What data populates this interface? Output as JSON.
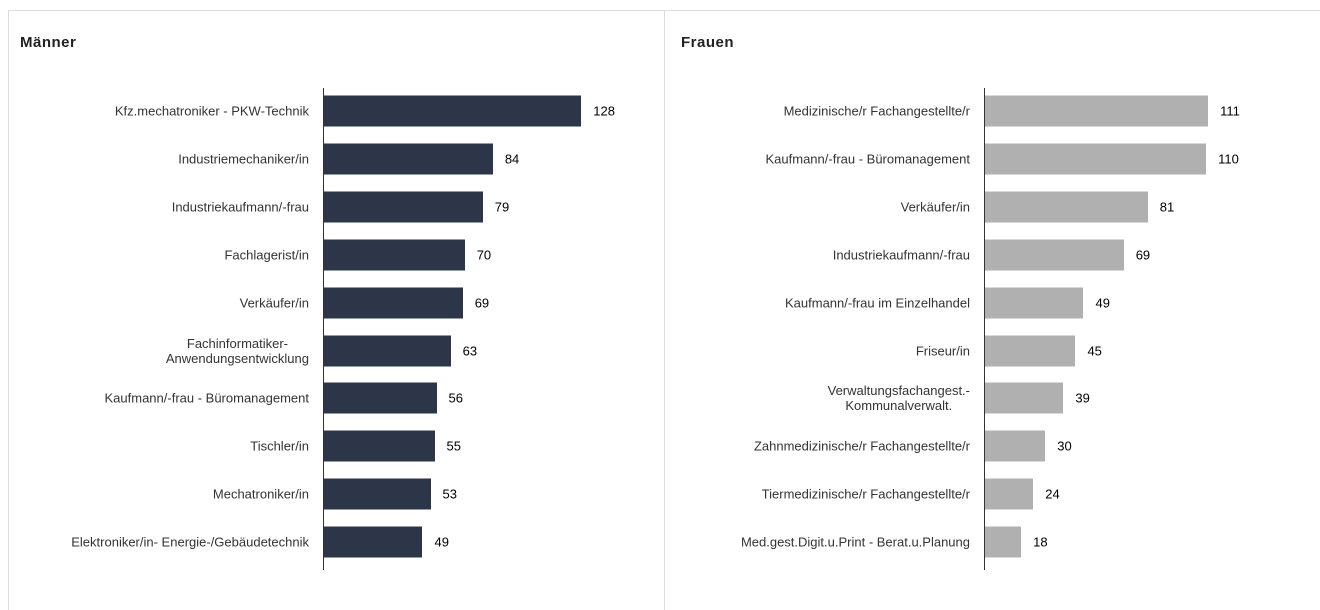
{
  "chart_data": [
    {
      "type": "bar",
      "orientation": "horizontal",
      "title": "Männer",
      "color": "#2d3548",
      "categories": [
        "Kfz.mechatroniker - PKW-Technik",
        "Industriemechaniker/in",
        "Industriekaufmann/-frau",
        "Fachlagerist/in",
        "Verkäufer/in",
        "Fachinformatiker-\nAnwendungsentwicklung",
        "Kaufmann/-frau - Büromanagement",
        "Tischler/in",
        "Mechatroniker/in",
        "Elektroniker/in- Energie-/Gebäudetechnik"
      ],
      "values": [
        128,
        84,
        79,
        70,
        69,
        63,
        56,
        55,
        53,
        49
      ]
    },
    {
      "type": "bar",
      "orientation": "horizontal",
      "title": "Frauen",
      "color": "#b0b0b0",
      "categories": [
        "Medizinische/r Fachangestellte/r",
        "Kaufmann/-frau - Büromanagement",
        "Verkäufer/in",
        "Industriekaufmann/-frau",
        "Kaufmann/-frau im Einzelhandel",
        "Friseur/in",
        "Verwaltungsfachangest.-\nKommunalverwalt.",
        "Zahnmedizinische/r Fachangestellte/r",
        "Tiermedizinische/r Fachangestellte/r",
        "Med.gest.Digit.u.Print - Berat.u.Planung"
      ],
      "values": [
        111,
        110,
        81,
        69,
        49,
        45,
        39,
        30,
        24,
        18
      ]
    }
  ]
}
